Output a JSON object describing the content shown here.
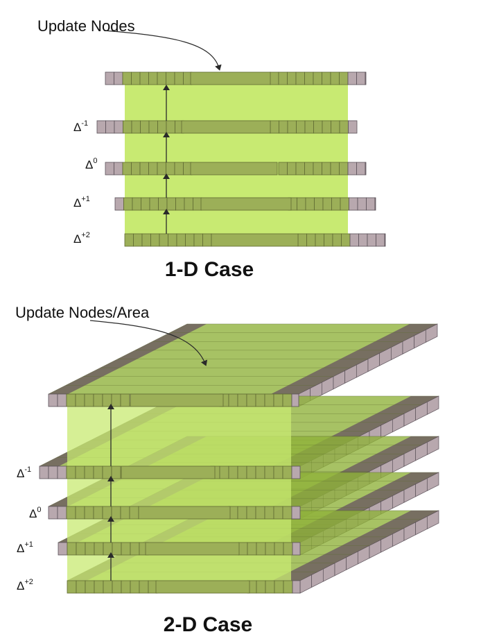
{
  "top_diagram": {
    "callout": "Update Nodes",
    "levels": [
      {
        "symbol": "Δ",
        "sup": "-1"
      },
      {
        "symbol": "Δ",
        "sup": "0"
      },
      {
        "symbol": "Δ",
        "sup": "+1"
      },
      {
        "symbol": "Δ",
        "sup": "+2"
      }
    ],
    "caption": "1-D Case"
  },
  "bottom_diagram": {
    "callout": "Update Nodes/Area",
    "levels": [
      {
        "symbol": "Δ",
        "sup": "-1"
      },
      {
        "symbol": "Δ",
        "sup": "0"
      },
      {
        "symbol": "Δ",
        "sup": "+1"
      },
      {
        "symbol": "Δ",
        "sup": "+2"
      }
    ],
    "caption": "2-D Case"
  },
  "colors": {
    "highlight": "#c8ea72",
    "green_cell": "#9caf58",
    "green_cell_edge": "#5f6a33",
    "gray_cell": "#b8a8ae",
    "gray_cell_edge": "#5a5058",
    "plane_green": "#8fb239",
    "plane_dark": "#6c5a60",
    "arrow": "#2a2a2a"
  }
}
